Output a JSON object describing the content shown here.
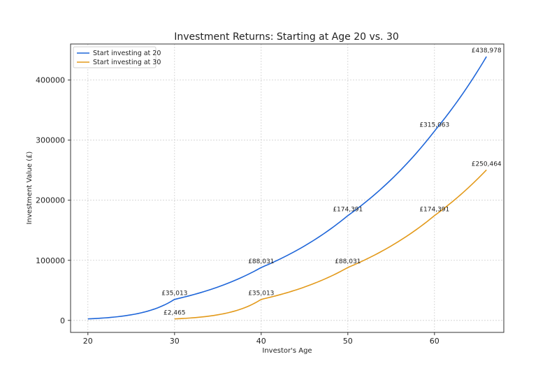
{
  "chart_data": {
    "type": "line",
    "title": "Investment Returns: Starting at Age 20 vs. 30",
    "xlabel": "Investor's Age",
    "ylabel": "Investment Value (£)",
    "xlim": [
      18,
      68
    ],
    "ylim": [
      -20000,
      460000
    ],
    "xticks": [
      20,
      30,
      40,
      50,
      60
    ],
    "yticks": [
      0,
      100000,
      200000,
      300000,
      400000
    ],
    "grid": true,
    "legend_position": "top-left",
    "colors": {
      "series1": "#1f66d9",
      "series2": "#e39a1b"
    },
    "series": [
      {
        "name": "Start investing at 20",
        "start_age": 20,
        "end_age": 66,
        "points": [
          [
            20,
            2465
          ],
          [
            30,
            35013
          ],
          [
            40,
            88031
          ],
          [
            50,
            174391
          ],
          [
            60,
            315063
          ],
          [
            66,
            438978
          ]
        ],
        "labels": [
          {
            "x": 30,
            "y": 35013,
            "text": "£35,013"
          },
          {
            "x": 40,
            "y": 88031,
            "text": "£88,031"
          },
          {
            "x": 50,
            "y": 174391,
            "text": "£174,391"
          },
          {
            "x": 60,
            "y": 315063,
            "text": "£315,063"
          },
          {
            "x": 66,
            "y": 438978,
            "text": "£438,978"
          }
        ]
      },
      {
        "name": "Start investing at 30",
        "start_age": 30,
        "end_age": 66,
        "points": [
          [
            30,
            2465
          ],
          [
            40,
            35013
          ],
          [
            50,
            88031
          ],
          [
            60,
            174391
          ],
          [
            66,
            250464
          ]
        ],
        "labels": [
          {
            "x": 30,
            "y": 2465,
            "text": "£2,465"
          },
          {
            "x": 40,
            "y": 35013,
            "text": "£35,013"
          },
          {
            "x": 50,
            "y": 88031,
            "text": "£88,031"
          },
          {
            "x": 60,
            "y": 174391,
            "text": "£174,391"
          },
          {
            "x": 66,
            "y": 250464,
            "text": "£250,464"
          }
        ]
      }
    ]
  }
}
